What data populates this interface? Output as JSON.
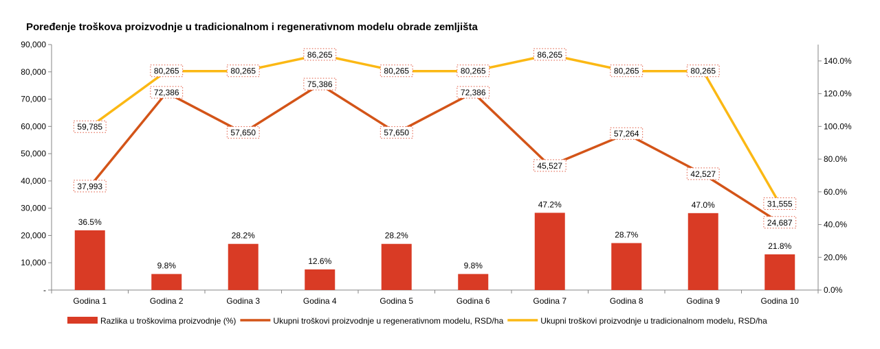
{
  "chart_data": {
    "type": "bar",
    "title": "Poređenje troškova proizvodnje u tradicionalnom i regenerativnom modelu obrade zemljišta",
    "categories": [
      "Godina 1",
      "Godina 2",
      "Godina 3",
      "Godina 4",
      "Godina 5",
      "Godina 6",
      "Godina 7",
      "Godina 8",
      "Godina 9",
      "Godina 10"
    ],
    "left_axis": {
      "ylim": [
        0,
        90000
      ],
      "ticks": [
        0,
        10000,
        20000,
        30000,
        40000,
        50000,
        60000,
        70000,
        80000,
        90000
      ],
      "tick_labels": [
        "-",
        "10,000",
        "20,000",
        "30,000",
        "40,000",
        "50,000",
        "60,000",
        "70,000",
        "80,000",
        "90,000"
      ]
    },
    "right_axis": {
      "ylim": [
        0,
        150
      ],
      "ticks": [
        0,
        20,
        40,
        60,
        80,
        100,
        120,
        140
      ],
      "tick_labels": [
        "0.0%",
        "20.0%",
        "40.0%",
        "60.0%",
        "80.0%",
        "100.0%",
        "120.0%",
        "140.0%"
      ]
    },
    "series": [
      {
        "name": "Razlika u troškovima proizvodnje (%)",
        "type": "bar",
        "axis": "right",
        "color": "#D93B25",
        "values": [
          36.5,
          9.8,
          28.2,
          12.6,
          28.2,
          9.8,
          47.2,
          28.7,
          47.0,
          21.8
        ],
        "labels": [
          "36.5%",
          "9.8%",
          "28.2%",
          "12.6%",
          "28.2%",
          "9.8%",
          "47.2%",
          "28.7%",
          "47.0%",
          "21.8%"
        ]
      },
      {
        "name": "Ukupni troškovi proizvodnje u regenerativnom modelu, RSD/ha",
        "type": "line",
        "axis": "left",
        "color": "#D35418",
        "values": [
          37993,
          72386,
          57650,
          75386,
          57650,
          72386,
          45527,
          57264,
          42527,
          24687
        ],
        "labels": [
          "37,993",
          "72,386",
          "57,650",
          "75,386",
          "57,650",
          "72,386",
          "45,527",
          "57,264",
          "42,527",
          "24,687"
        ]
      },
      {
        "name": "Ukupni troškovi proizvodnje u tradicionalnom modelu, RSD/ha",
        "type": "line",
        "axis": "left",
        "color": "#FBB814",
        "values": [
          59785,
          80265,
          80265,
          86265,
          80265,
          80265,
          86265,
          80265,
          80265,
          31555
        ],
        "labels": [
          "59,785",
          "80,265",
          "80,265",
          "86,265",
          "80,265",
          "80,265",
          "86,265",
          "80,265",
          "80,265",
          "31,555"
        ]
      }
    ],
    "legend_position": "bottom",
    "grid": false
  }
}
